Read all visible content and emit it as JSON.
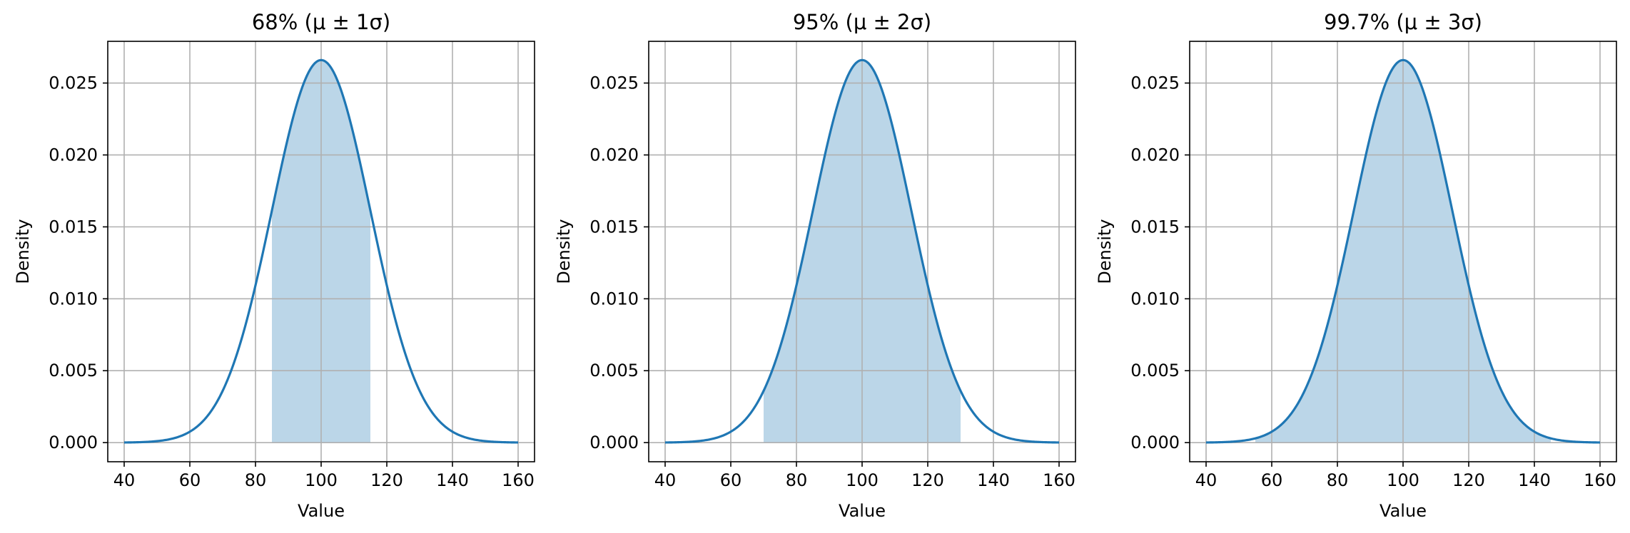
{
  "colors": {
    "curve": "#1f77b4",
    "fill": "#1f77b4",
    "grid": "#b0b0b0",
    "spine": "#000000"
  },
  "chart_data": [
    {
      "type": "area",
      "title": "68% (μ ± 1σ)",
      "xlabel": "Value",
      "ylabel": "Density",
      "xlim": [
        35,
        165
      ],
      "ylim": [
        -0.00133,
        0.0279
      ],
      "x_ticks": [
        40,
        60,
        80,
        100,
        120,
        140,
        160
      ],
      "x_tick_labels": [
        "40",
        "60",
        "80",
        "100",
        "120",
        "140",
        "160"
      ],
      "y_ticks": [
        0.0,
        0.005,
        0.01,
        0.015,
        0.02,
        0.025
      ],
      "y_tick_labels": [
        "0.000",
        "0.005",
        "0.010",
        "0.015",
        "0.020",
        "0.025"
      ],
      "grid": true,
      "curve": {
        "distribution": "normal",
        "mean": 100,
        "std": 15,
        "x_range": [
          40,
          160
        ],
        "peak_density": 0.0266
      },
      "shaded_interval": [
        85,
        115
      ]
    },
    {
      "type": "area",
      "title": "95% (μ ± 2σ)",
      "xlabel": "Value",
      "ylabel": "Density",
      "xlim": [
        35,
        165
      ],
      "ylim": [
        -0.00133,
        0.0279
      ],
      "x_ticks": [
        40,
        60,
        80,
        100,
        120,
        140,
        160
      ],
      "x_tick_labels": [
        "40",
        "60",
        "80",
        "100",
        "120",
        "140",
        "160"
      ],
      "y_ticks": [
        0.0,
        0.005,
        0.01,
        0.015,
        0.02,
        0.025
      ],
      "y_tick_labels": [
        "0.000",
        "0.005",
        "0.010",
        "0.015",
        "0.020",
        "0.025"
      ],
      "grid": true,
      "curve": {
        "distribution": "normal",
        "mean": 100,
        "std": 15,
        "x_range": [
          40,
          160
        ],
        "peak_density": 0.0266
      },
      "shaded_interval": [
        70,
        130
      ]
    },
    {
      "type": "area",
      "title": "99.7% (μ ± 3σ)",
      "xlabel": "Value",
      "ylabel": "Density",
      "xlim": [
        35,
        165
      ],
      "ylim": [
        -0.00133,
        0.0279
      ],
      "x_ticks": [
        40,
        60,
        80,
        100,
        120,
        140,
        160
      ],
      "x_tick_labels": [
        "40",
        "60",
        "80",
        "100",
        "120",
        "140",
        "160"
      ],
      "y_ticks": [
        0.0,
        0.005,
        0.01,
        0.015,
        0.02,
        0.025
      ],
      "y_tick_labels": [
        "0.000",
        "0.005",
        "0.010",
        "0.015",
        "0.020",
        "0.025"
      ],
      "grid": true,
      "curve": {
        "distribution": "normal",
        "mean": 100,
        "std": 15,
        "x_range": [
          40,
          160
        ],
        "peak_density": 0.0266
      },
      "shaded_interval": [
        55,
        145
      ]
    }
  ]
}
